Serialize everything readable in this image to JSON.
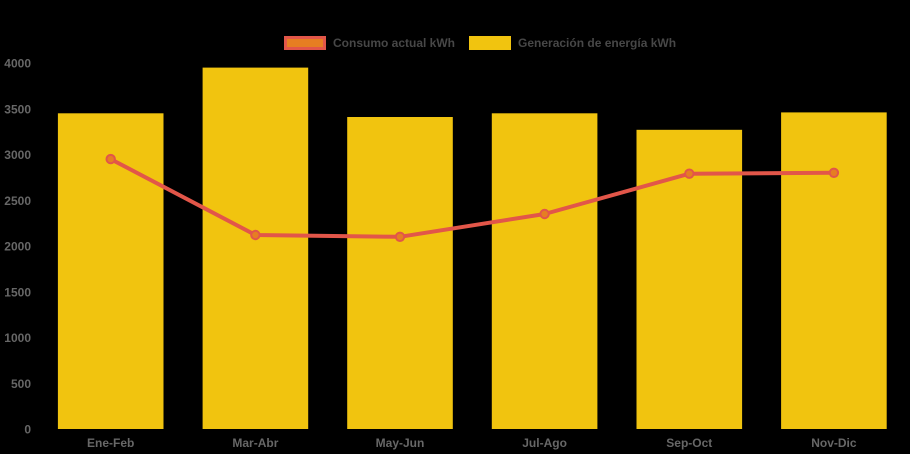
{
  "legend": {
    "items": [
      {
        "label": "Consumo actual kWh",
        "series_type": "line",
        "swatch_fill": "#E67E22",
        "swatch_border": "#E25649"
      },
      {
        "label": "Generación de energía kWh",
        "series_type": "bar",
        "swatch_fill": "#F1C40F",
        "swatch_border": "#F1C40F"
      }
    ]
  },
  "chart_data": {
    "type": "bar+line combo",
    "categories": [
      "Ene-Feb",
      "Mar-Abr",
      "May-Jun",
      "Jul-Ago",
      "Sep-Oct",
      "Nov-Dic"
    ],
    "series": [
      {
        "name": "Generación de energía kWh",
        "type": "bar",
        "color": "#F1C40F",
        "values": [
          3450,
          3950,
          3410,
          3450,
          3270,
          3460
        ]
      },
      {
        "name": "Consumo actual kWh",
        "type": "line",
        "color": "#E25649",
        "marker_fill": "#E67E22",
        "values": [
          2950,
          2120,
          2100,
          2350,
          2790,
          2800
        ]
      }
    ],
    "title": "",
    "xlabel": "",
    "ylabel": "",
    "ylim": [
      0,
      4000
    ],
    "ytick_step": 500,
    "yticks": [
      0,
      500,
      1000,
      1500,
      2000,
      2500,
      3000,
      3500,
      4000
    ],
    "grid": false,
    "legend_position": "top-center",
    "background_color": "#000000",
    "axis_text_color": "#676767",
    "legend_text_color": "#474747"
  }
}
